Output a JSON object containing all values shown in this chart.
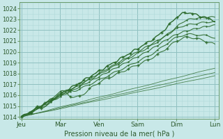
{
  "xlabel": "Pression niveau de la mer( hPa )",
  "bg_color": "#c8e8e8",
  "minor_grid_color": "#b0d8d8",
  "major_grid_color": "#90c0c0",
  "line_color": "#2d6b2d",
  "ylim": [
    1013.8,
    1024.6
  ],
  "yticks": [
    1014,
    1015,
    1016,
    1017,
    1018,
    1019,
    1020,
    1021,
    1022,
    1023,
    1024
  ],
  "day_labels": [
    "Jeu",
    "Mar",
    "Ven",
    "Sam",
    "Dim",
    "Lun"
  ],
  "day_positions": [
    0,
    1,
    2,
    3,
    4,
    5
  ],
  "xlim": [
    -0.05,
    5.1
  ],
  "n_points": 200
}
